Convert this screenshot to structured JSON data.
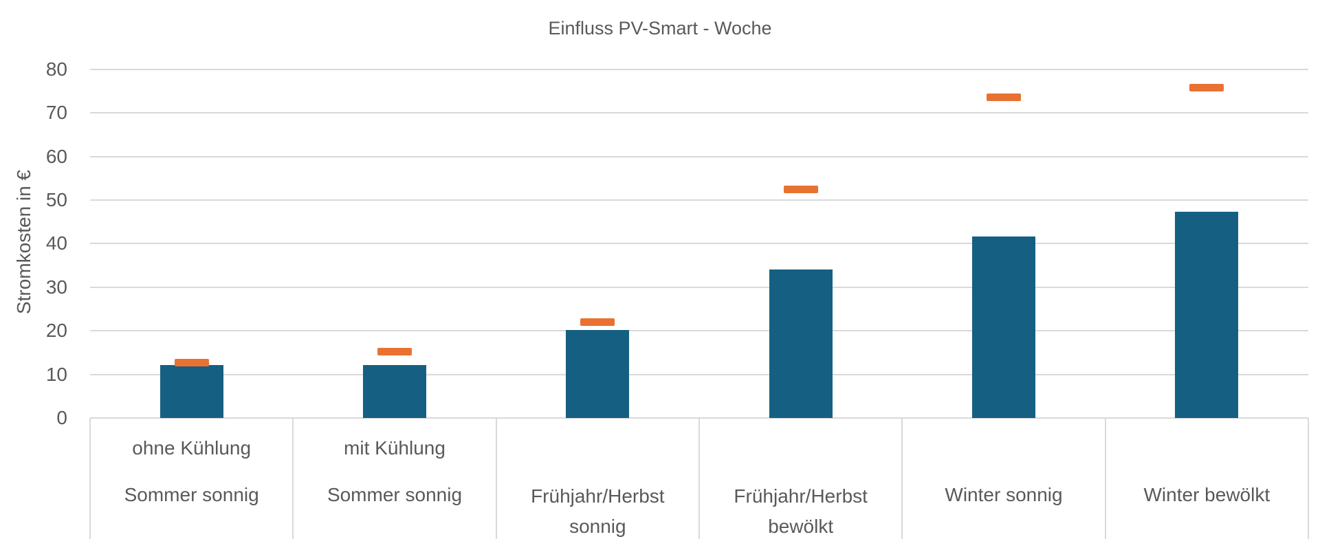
{
  "chart_data": {
    "type": "bar",
    "title": "Einfluss PV-Smart - Woche",
    "xlabel": "",
    "ylabel": "Stromkosten in €",
    "ylim": [
      0,
      80
    ],
    "yticks": [
      0,
      10,
      20,
      30,
      40,
      50,
      60,
      70,
      80
    ],
    "grid": true,
    "legend": "none",
    "categories": [
      {
        "sub": "ohne Kühlung",
        "group": "Sommer sonnig"
      },
      {
        "sub": "mit Kühlung",
        "group": "Sommer sonnig"
      },
      {
        "sub": "",
        "group": "Frühjahr/Herbst sonnig"
      },
      {
        "sub": "",
        "group": "Frühjahr/Herbst bewölkt"
      },
      {
        "sub": "",
        "group": "Winter sonnig"
      },
      {
        "sub": "",
        "group": "Winter bewölkt"
      }
    ],
    "series": [
      {
        "name": "Bar (blue)",
        "style": "bar",
        "color": "#156082",
        "values": [
          12.1,
          12.1,
          20.2,
          34.1,
          41.6,
          47.3
        ]
      },
      {
        "name": "Marker (orange)",
        "style": "dash-marker",
        "color": "#e97132",
        "values": [
          12.7,
          15.2,
          22.0,
          52.4,
          73.6,
          75.8
        ]
      }
    ]
  },
  "labels": {
    "title": "Einfluss PV-Smart - Woche",
    "ylabel": "Stromkosten in €",
    "yticks": [
      "0",
      "10",
      "20",
      "30",
      "40",
      "50",
      "60",
      "70",
      "80"
    ],
    "cat_lines": [
      [
        "ohne Kühlung",
        "Sommer sonnig"
      ],
      [
        "mit Kühlung",
        "Sommer sonnig"
      ],
      [
        "Frühjahr/Herbst",
        "sonnig"
      ],
      [
        "Frühjahr/Herbst",
        "bewölkt"
      ],
      [
        "Winter sonnig"
      ],
      [
        "Winter bewölkt"
      ]
    ]
  }
}
